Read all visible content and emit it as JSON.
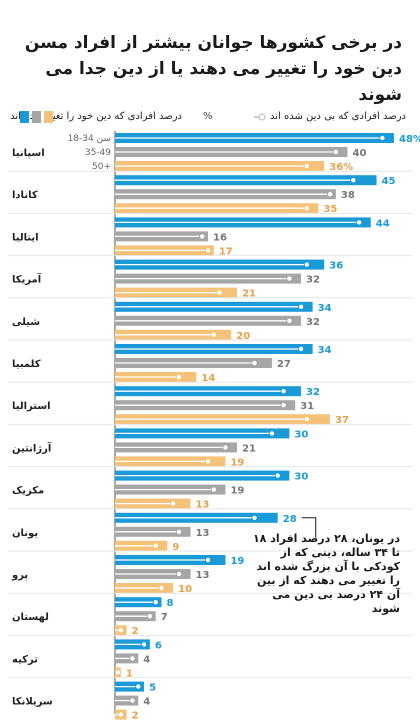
{
  "title": "در برخی کشورها جوانان بیشتر از افراد مسن دین خود را تغییر می دهند یا از دین جدا می شوند",
  "legend": {
    "changed_label": "درصد افرادی که دین خود را تغییر داده اند",
    "unaffiliated_label": "درصد افرادی که بی دین شده اند",
    "percent_sign": "%"
  },
  "age_groups": [
    "18-34 سن",
    "35-49",
    "50+"
  ],
  "annotation": "در یونان، ۲۸ درصد افراد ۱۸ تا ۳۴ ساله، دینی که از کودکی با آن بزرگ شده اند را تغییر می دهند که از بین آن ۲۴ درصد بی دین می شوند",
  "colors": {
    "young": "#1a9bd7",
    "middle": "#a6a6a6",
    "old": "#f5c27a",
    "dot": "#ffffff"
  },
  "chart_data": {
    "type": "bar",
    "orientation": "horizontal",
    "categories": [
      "اسپانیا",
      "کانادا",
      "ایتالیا",
      "آمریکا",
      "شیلی",
      "کلمبیا",
      "استرالیا",
      "آرژانتین",
      "مکزیک",
      "یونان",
      "پرو",
      "لهستان",
      "ترکیه",
      "سریلانکا"
    ],
    "series": [
      {
        "name": "18-34",
        "values": [
          48,
          45,
          44,
          36,
          34,
          34,
          32,
          30,
          30,
          28,
          19,
          8,
          6,
          5
        ]
      },
      {
        "name": "35-49",
        "values": [
          40,
          38,
          16,
          32,
          32,
          27,
          31,
          21,
          19,
          13,
          13,
          7,
          4,
          4
        ]
      },
      {
        "name": "50+",
        "values": [
          36,
          35,
          17,
          21,
          20,
          14,
          37,
          19,
          13,
          9,
          10,
          2,
          1,
          2
        ]
      }
    ],
    "unaffiliated_share": [
      [
        46,
        41,
        42,
        33,
        32,
        32,
        29,
        27,
        28,
        24,
        16,
        7,
        5,
        4
      ],
      [
        38,
        37,
        15,
        30,
        30,
        24,
        29,
        19,
        17,
        11,
        11,
        6,
        3,
        3
      ],
      [
        33,
        33,
        16,
        18,
        17,
        11,
        33,
        16,
        10,
        7,
        8,
        1,
        0.5,
        1
      ]
    ],
    "value_labels": [
      [
        "48%",
        "45",
        "44",
        "36",
        "34",
        "34",
        "32",
        "30",
        "30",
        "28",
        "19",
        "8",
        "6",
        "5"
      ],
      [
        "40",
        "38",
        "16",
        "32",
        "32",
        "27",
        "31",
        "21",
        "19",
        "13",
        "13",
        "7",
        "4",
        "4"
      ],
      [
        "36%",
        "35",
        "17",
        "21",
        "20",
        "14",
        "37",
        "19",
        "13",
        "9",
        "10",
        "2",
        "1",
        "2"
      ]
    ],
    "xlim": [
      0,
      48
    ]
  }
}
